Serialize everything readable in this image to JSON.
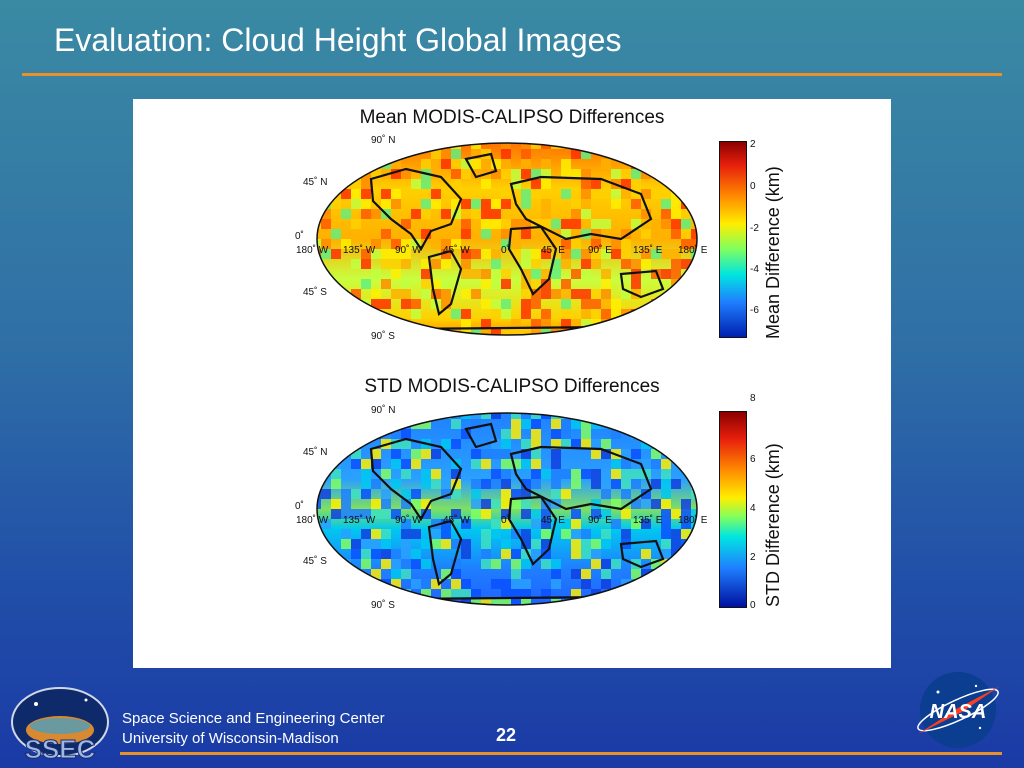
{
  "slide": {
    "title": "Evaluation: Cloud Height Global Images",
    "page_number": "22",
    "footer": {
      "line1": "Space Science and Engineering Center",
      "line2": "University of Wisconsin-Madison"
    },
    "logos": {
      "left": "SSEC",
      "right": "NASA"
    }
  },
  "figure": {
    "mean_panel": {
      "title": "Mean MODIS-CALIPSO Differences",
      "colorbar_label": "Mean Difference (km)",
      "colorbar_ticks": [
        "2",
        "0",
        "-2",
        "-4",
        "-6"
      ],
      "lat_labels": [
        "90˚ N",
        "45˚ N",
        "0˚",
        "45˚ S",
        "90˚ S"
      ],
      "lon_labels": [
        "180˚ W",
        "135˚ W",
        "90˚ W",
        "45˚ W",
        "0˚",
        "45˚ E",
        "90˚ E",
        "135˚ E",
        "180˚ E"
      ]
    },
    "std_panel": {
      "title": "STD MODIS-CALIPSO Differences",
      "colorbar_label": "STD Difference (km)",
      "colorbar_ticks": [
        "8",
        "6",
        "4",
        "2",
        "0"
      ],
      "lat_labels": [
        "90˚ N",
        "45˚ N",
        "0˚",
        "45˚ S",
        "90˚ S"
      ],
      "lon_labels": [
        "180˚ W",
        "135˚ W",
        "90˚ W",
        "45˚ W",
        "0˚",
        "45˚ E",
        "90˚ E",
        "135˚ E",
        "180˚ E"
      ]
    }
  },
  "colors": {
    "accent_rule": "#e8902a",
    "title_text": "#ffffff"
  }
}
